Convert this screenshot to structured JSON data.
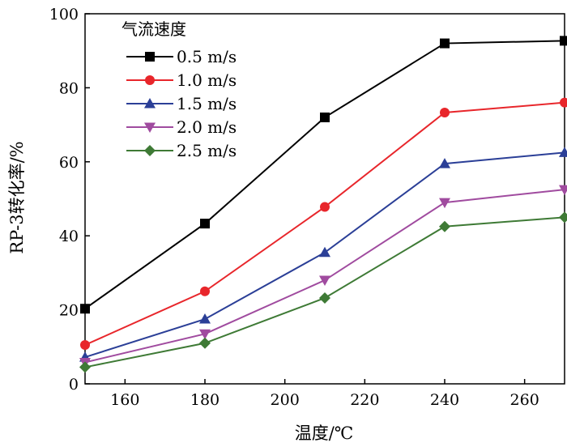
{
  "chart_data": {
    "type": "line",
    "title": "",
    "xlabel": "温度/℃",
    "ylabel": "RP-3转化率/%",
    "xlim": [
      150,
      270
    ],
    "ylim": [
      0,
      100
    ],
    "x_ticks": [
      160,
      180,
      200,
      220,
      240,
      260
    ],
    "y_ticks": [
      0,
      20,
      40,
      60,
      80,
      100
    ],
    "grid": false,
    "legend": {
      "title": "气流速度",
      "position": "top-left"
    },
    "x": [
      150,
      180,
      210,
      240,
      270
    ],
    "series": [
      {
        "name": "0.5 m/s",
        "color": "#000000",
        "marker": "square",
        "values": [
          20.3,
          43.3,
          72.0,
          92.0,
          92.7
        ]
      },
      {
        "name": "1.0 m/s",
        "color": "#e8262b",
        "marker": "circle",
        "values": [
          10.5,
          25.0,
          47.8,
          73.3,
          76.0
        ]
      },
      {
        "name": "1.5 m/s",
        "color": "#2b3f97",
        "marker": "triangle-up",
        "values": [
          7.2,
          17.5,
          35.5,
          59.5,
          62.5
        ]
      },
      {
        "name": "2.0 m/s",
        "color": "#a04b9f",
        "marker": "triangle-down",
        "values": [
          5.8,
          13.5,
          28.0,
          49.0,
          52.5
        ]
      },
      {
        "name": "2.5 m/s",
        "color": "#3e7a35",
        "marker": "diamond",
        "values": [
          4.5,
          11.0,
          23.2,
          42.5,
          45.0
        ]
      }
    ]
  }
}
